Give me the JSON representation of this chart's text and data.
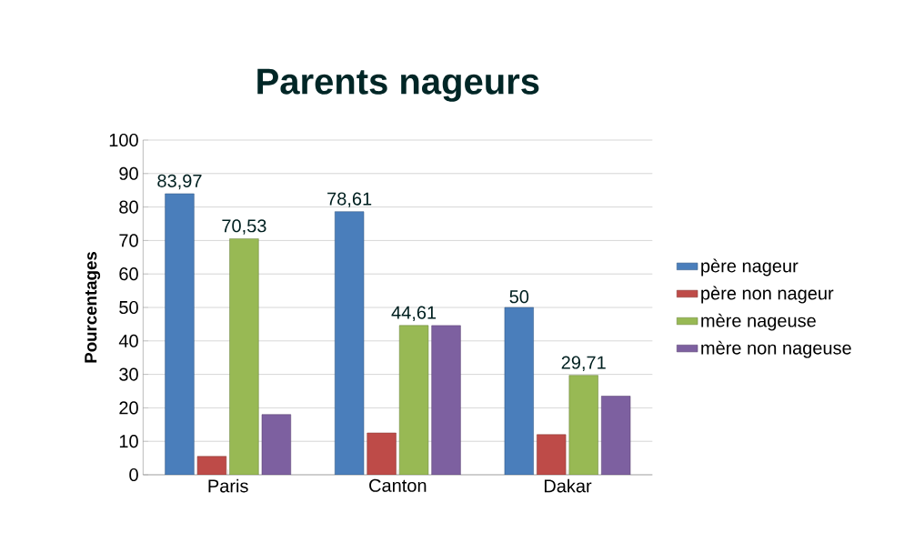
{
  "chart_data": {
    "type": "bar",
    "title": "Parents nageurs",
    "ylabel": "Pourcentages",
    "categories": [
      "Paris",
      "Canton",
      "Dakar"
    ],
    "series": [
      {
        "name": "père nageur",
        "color": "#4a7ebb",
        "values": [
          83.97,
          78.61,
          50
        ],
        "value_labels": [
          "83,97",
          "78,61",
          "50"
        ]
      },
      {
        "name": "père non nageur",
        "color": "#be4b48",
        "values": [
          5.5,
          12.5,
          12
        ]
      },
      {
        "name": "mère nageuse",
        "color": "#98b954",
        "values": [
          70.53,
          44.61,
          29.71
        ],
        "value_labels": [
          "70,53",
          "44,61",
          "29,71"
        ]
      },
      {
        "name": "mère non nageuse",
        "color": "#7d60a0",
        "values": [
          18,
          44.6,
          23.5
        ]
      }
    ],
    "ylim": [
      0,
      100
    ],
    "yticks": [
      0,
      10,
      20,
      30,
      40,
      50,
      60,
      70,
      80,
      90,
      100
    ],
    "grid": "y",
    "legend": "right"
  }
}
